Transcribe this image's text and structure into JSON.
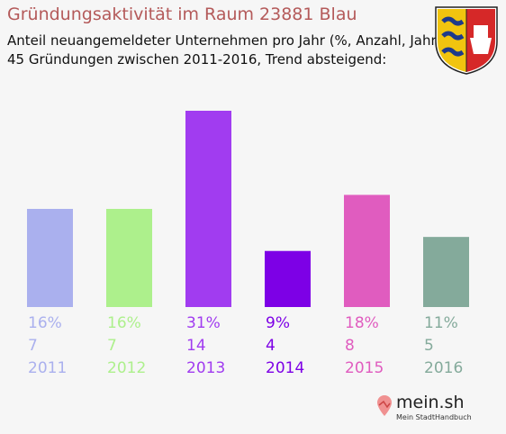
{
  "title": "Gründungsaktivität im Raum 23881 Blau",
  "subtitle_line1": "Anteil neuangemeldeter Unternehmen pro Jahr (%, Anzahl, Jahr)",
  "subtitle_line2": "45 Gründungen zwischen 2011-2016, Trend absteigend:",
  "logo": {
    "word": "mein.sh",
    "tagline": "Mein StadtHandbuch"
  },
  "crest_icon": "schleswig-holstein-coat-of-arms",
  "chart_data": {
    "type": "bar",
    "categories": [
      "2011",
      "2012",
      "2013",
      "2014",
      "2015",
      "2016"
    ],
    "values": [
      7,
      7,
      14,
      4,
      8,
      5
    ],
    "percent_labels": [
      "16%",
      "16%",
      "31%",
      "9%",
      "18%",
      "11%"
    ],
    "colors": [
      "#aab0ee",
      "#adf08c",
      "#a13cf0",
      "#7d00e6",
      "#e05cbf",
      "#84aa9b"
    ],
    "title": "",
    "xlabel": "",
    "ylabel": "",
    "ylim": [
      0,
      14
    ],
    "grid": false,
    "legend": "none"
  }
}
